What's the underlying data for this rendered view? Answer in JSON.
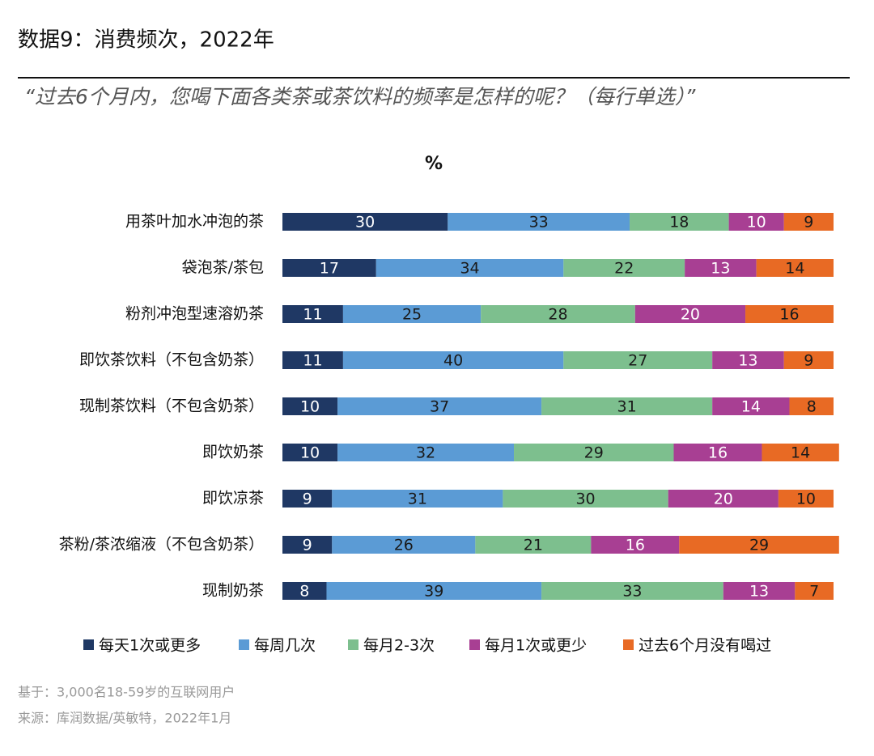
{
  "chart_data": {
    "type": "stacked_bar_horizontal",
    "title": "数据9：消费频次，2022年",
    "subtitle": "“过去6个月内，您喝下面各类茶或茶饮料的频率是怎样的呢？（每行单选）”",
    "unit": "%",
    "categories": [
      "用茶叶加水冲泡的茶",
      "袋泡茶/茶包",
      "粉剂冲泡型速溶奶茶",
      "即饮茶饮料（不包含奶茶）",
      "现制茶饮料（不包含奶茶）",
      "即饮奶茶",
      "即饮凉茶",
      "茶粉/茶浓缩液（不包含奶茶）",
      "现制奶茶"
    ],
    "series": [
      {
        "name": "每天1次或更多",
        "color": "#1f3864",
        "label_color": "#ffffff",
        "values": [
          30,
          17,
          11,
          11,
          10,
          10,
          9,
          9,
          8
        ]
      },
      {
        "name": "每周几次",
        "color": "#5b9bd5",
        "label_color": "#1a1a1a",
        "values": [
          33,
          34,
          25,
          40,
          37,
          32,
          31,
          26,
          39
        ]
      },
      {
        "name": "每月2-3次",
        "color": "#7dbf8e",
        "label_color": "#1a1a1a",
        "values": [
          18,
          22,
          28,
          27,
          31,
          29,
          30,
          21,
          33
        ]
      },
      {
        "name": "每月1次或更少",
        "color": "#a83f93",
        "label_color": "#ffffff",
        "values": [
          10,
          13,
          20,
          13,
          14,
          16,
          20,
          16,
          13
        ]
      },
      {
        "name": "过去6个月没有喝过",
        "color": "#e86a24",
        "label_color": "#1a1a1a",
        "values": [
          9,
          14,
          16,
          9,
          8,
          14,
          10,
          29,
          7
        ]
      }
    ],
    "notes": [
      "基于：3,000名18-59岁的互联网用户",
      "来源：库润数据/英敏特，2022年1月"
    ]
  }
}
